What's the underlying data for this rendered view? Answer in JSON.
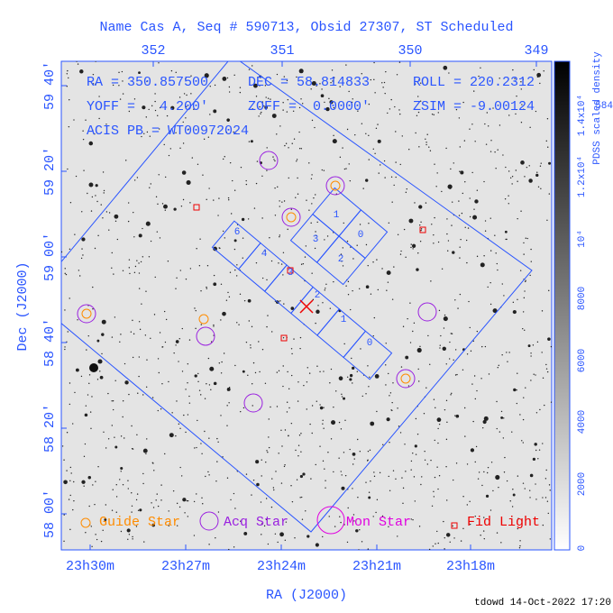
{
  "title": "Name Cas A, Seq # 590713, Obsid 27307, ST Scheduled",
  "top_axis": {
    "ticks": [
      "352",
      "351",
      "350",
      "349"
    ]
  },
  "left_axis": {
    "label": "Dec (J2000)",
    "ticks": [
      "59 40'",
      "59 20'",
      "59 00'",
      "58 40'",
      "58 20'",
      "58 00'"
    ]
  },
  "bottom_axis": {
    "label": "RA (J2000)",
    "ticks": [
      "23h30m",
      "23h27m",
      "23h24m",
      "23h21m",
      "23h18m"
    ]
  },
  "info": [
    "RA = 350.857500",
    "DEC = 58.814833",
    "ROLL = 220.2312",
    "YOFF =   4.200'",
    "ZOFF =  0.0000'",
    "ZSIM = -9.00124",
    "ACIS PB = WT00972024"
  ],
  "chips": {
    "acis_i": [
      "1",
      "3",
      "0",
      "2"
    ],
    "acis_s": [
      "6",
      "4",
      "3",
      "2",
      "1",
      "0"
    ]
  },
  "legend": [
    "Guide Star",
    "Acq Star",
    "Mon Star",
    "Fid Light"
  ],
  "colorbar": {
    "label": "PDSS scaled density",
    "ticks": [
      "0",
      "2000",
      "4000",
      "6000",
      "8000",
      "10⁴",
      "1.2x10⁴",
      "1.4x10⁴"
    ]
  },
  "corner_text": "584",
  "footer": "tdowd 14-Oct-2022 17:20"
}
